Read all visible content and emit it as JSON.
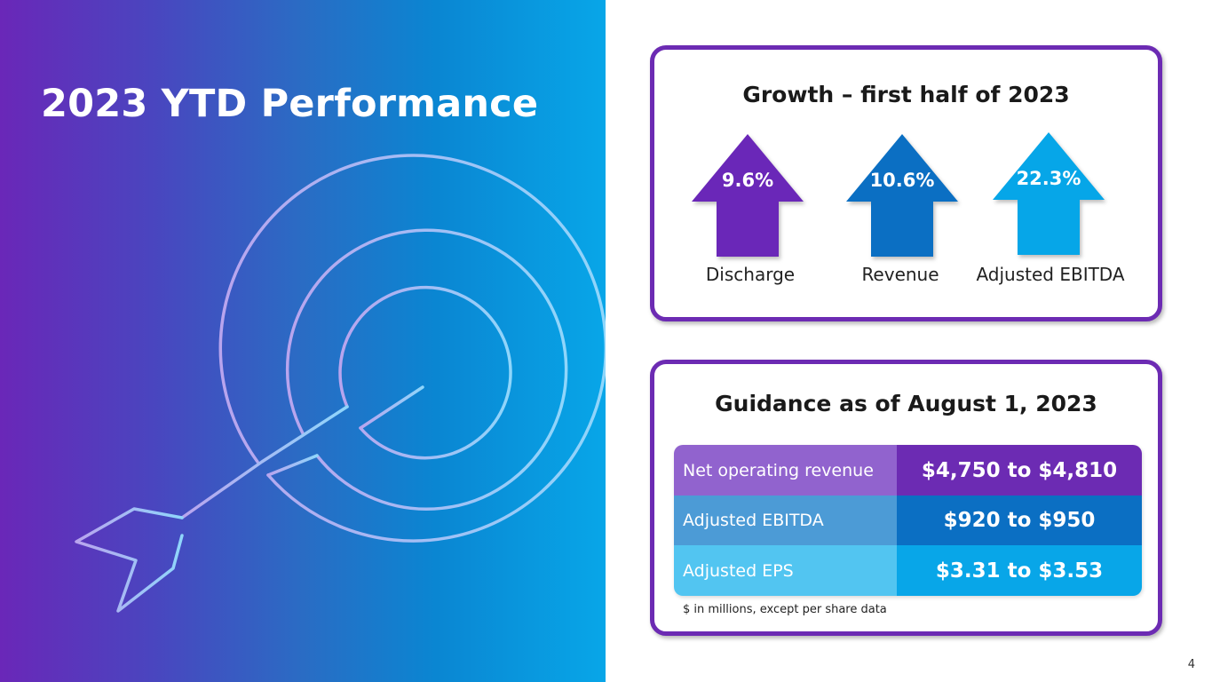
{
  "slide": {
    "title": "2023 YTD Performance",
    "page_number": "4"
  },
  "growth": {
    "title": "Growth – first half of 2023",
    "items": [
      {
        "value": "9.6%",
        "label": "Discharge",
        "color": "#6a27b8"
      },
      {
        "value": "10.6%",
        "label": "Revenue",
        "color": "#0b6fc3"
      },
      {
        "value": "22.3%",
        "label": "Adjusted EBITDA",
        "color": "#06a6e8"
      }
    ]
  },
  "guidance": {
    "title": "Guidance as of August 1, 2023",
    "rows": [
      {
        "label": "Net operating revenue",
        "value": "$4,750 to $4,810",
        "label_color": "#9163ce",
        "value_color": "#6c2bb3"
      },
      {
        "label": "Adjusted EBITDA",
        "value": "$920 to $950",
        "label_color": "#4c9bd6",
        "value_color": "#0b6fc3"
      },
      {
        "label": "Adjusted EPS",
        "value": "$3.31 to $3.53",
        "label_color": "#52c5f1",
        "value_color": "#08a6e8"
      }
    ],
    "footnote": "$ in millions, except per share data"
  },
  "colors": {
    "border": "#6c2bb3",
    "gradient_start": "#6a27b8",
    "gradient_end": "#08a6e8"
  },
  "icons": [
    "target-arrow-icon"
  ]
}
